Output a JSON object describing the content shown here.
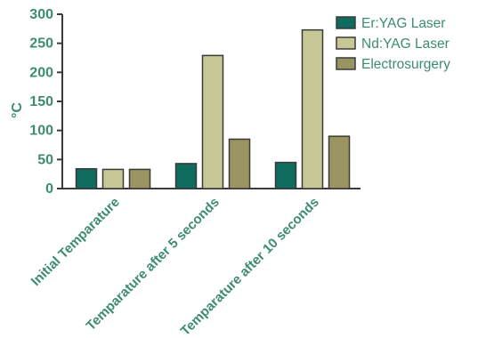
{
  "chart_data": {
    "type": "bar",
    "categories": [
      "Initial Temparature",
      "Temparature after 5 seconds",
      "Temparature after 10 seconds"
    ],
    "series": [
      {
        "name": "Er:YAG Laser",
        "values": [
          34,
          43,
          45
        ],
        "color": "#0f6b5e"
      },
      {
        "name": "Nd:YAG Laser",
        "values": [
          33,
          229,
          273
        ],
        "color": "#c8c896"
      },
      {
        "name": "Electrosurgery",
        "values": [
          33,
          85,
          90
        ],
        "color": "#9a9460"
      }
    ],
    "title": "",
    "xlabel": "",
    "ylabel": "°C",
    "ylim": [
      0,
      300
    ],
    "yticks": [
      "0",
      "50",
      "100",
      "150",
      "200",
      "250",
      "300"
    ],
    "grid": false,
    "legend_position": "top-right"
  },
  "colors": {
    "axis": "#3a3a3a",
    "text": "#3d8c6e",
    "bar_outline": "#3a3a3a"
  }
}
